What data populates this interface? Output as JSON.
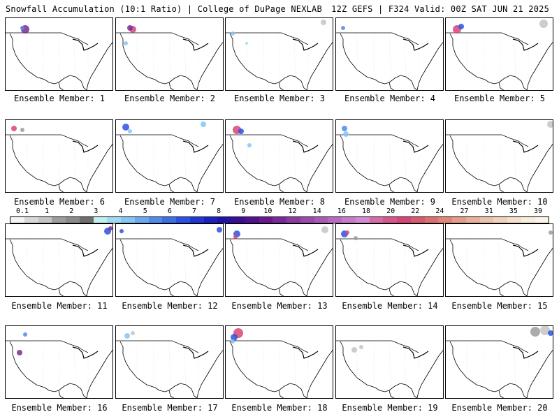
{
  "header": {
    "left": "Snowfall Accumulation (10:1 Ratio) | College of DuPage NEXLAB",
    "right": "12Z GEFS | F324 Valid: 00Z SAT JUN 21 2025"
  },
  "colorbar": {
    "labels": [
      "0.1",
      "1",
      "2",
      "3",
      "4",
      "5",
      "6",
      "7",
      "8",
      "9",
      "10",
      "12",
      "14",
      "16",
      "18",
      "20",
      "22",
      "24",
      "27",
      "31",
      "35",
      "39"
    ],
    "colors": [
      "#f4f4f4",
      "#d8d8d8",
      "#c4c4c4",
      "#9c9c9c",
      "#8a8a8a",
      "#6e6e6e",
      "#bfeeee",
      "#9fd9f3",
      "#85c5f4",
      "#6aa9f0",
      "#4e8ceb",
      "#3a6fe6",
      "#2a52e0",
      "#1f36d8",
      "#1a22c0",
      "#2412a8",
      "#3a0e96",
      "#52108e",
      "#6a1890",
      "#7a2a98",
      "#8a3aa2",
      "#9a4aac",
      "#a85ab6",
      "#b86ac0",
      "#c67ac8",
      "#d48ad0",
      "#d66aa8",
      "#d8548e",
      "#d84478",
      "#d85a6e",
      "#dc7070",
      "#e08878",
      "#e49c88",
      "#e8b098",
      "#ecc2aa",
      "#f0d2bc",
      "#f4e0cc",
      "#f8ecdc",
      "#fcf4ea"
    ]
  },
  "members": [
    {
      "label": "Ensemble Member: 1",
      "snow": [
        {
          "x": 28,
          "y": 16,
          "r": 6,
          "c": "#7a2a98"
        },
        {
          "x": 24,
          "y": 14,
          "r": 3,
          "c": "#4e8ceb"
        }
      ]
    },
    {
      "label": "Ensemble Member: 2",
      "snow": [
        {
          "x": 24,
          "y": 16,
          "r": 5,
          "c": "#d84478"
        },
        {
          "x": 20,
          "y": 14,
          "r": 4,
          "c": "#7a2a98"
        },
        {
          "x": 14,
          "y": 36,
          "r": 3,
          "c": "#85c5f4"
        }
      ]
    },
    {
      "label": "Ensemble Member: 3",
      "snow": [
        {
          "x": 10,
          "y": 22,
          "r": 3,
          "c": "#85c5f4"
        },
        {
          "x": 30,
          "y": 36,
          "r": 2,
          "c": "#9fd9f3"
        },
        {
          "x": 140,
          "y": 6,
          "r": 4,
          "c": "#c4c4c4"
        }
      ]
    },
    {
      "label": "Ensemble Member: 4",
      "snow": [
        {
          "x": 10,
          "y": 14,
          "r": 3,
          "c": "#4e8ceb"
        }
      ]
    },
    {
      "label": "Ensemble Member: 5",
      "snow": [
        {
          "x": 16,
          "y": 16,
          "r": 6,
          "c": "#d84478"
        },
        {
          "x": 22,
          "y": 12,
          "r": 4,
          "c": "#2a52e0"
        },
        {
          "x": 140,
          "y": 8,
          "r": 6,
          "c": "#c4c4c4"
        }
      ]
    },
    {
      "label": "Ensemble Member: 6",
      "snow": [
        {
          "x": 12,
          "y": 12,
          "r": 4,
          "c": "#d84478"
        },
        {
          "x": 24,
          "y": 14,
          "r": 3,
          "c": "#9c9c9c"
        }
      ]
    },
    {
      "label": "Ensemble Member: 7",
      "snow": [
        {
          "x": 14,
          "y": 10,
          "r": 5,
          "c": "#2a52e0"
        },
        {
          "x": 20,
          "y": 16,
          "r": 3,
          "c": "#85c5f4"
        },
        {
          "x": 125,
          "y": 6,
          "r": 4,
          "c": "#85c5f4"
        }
      ]
    },
    {
      "label": "Ensemble Member: 8",
      "snow": [
        {
          "x": 16,
          "y": 14,
          "r": 6,
          "c": "#d84478"
        },
        {
          "x": 22,
          "y": 16,
          "r": 4,
          "c": "#2a52e0"
        },
        {
          "x": 34,
          "y": 36,
          "r": 3,
          "c": "#85c5f4"
        }
      ]
    },
    {
      "label": "Ensemble Member: 9",
      "snow": [
        {
          "x": 12,
          "y": 12,
          "r": 4,
          "c": "#4e8ceb"
        },
        {
          "x": 14,
          "y": 20,
          "r": 4,
          "c": "#85c5f4"
        }
      ]
    },
    {
      "label": "Ensemble Member: 10",
      "snow": [
        {
          "x": 150,
          "y": 6,
          "r": 5,
          "c": "#c4c4c4"
        }
      ]
    },
    {
      "label": "Ensemble Member: 11",
      "snow": [
        {
          "x": 146,
          "y": 10,
          "r": 5,
          "c": "#2a52e0"
        },
        {
          "x": 150,
          "y": 6,
          "r": 3,
          "c": "#7a2a98"
        }
      ]
    },
    {
      "label": "Ensemble Member: 12",
      "snow": [
        {
          "x": 8,
          "y": 10,
          "r": 3,
          "c": "#2a52e0"
        },
        {
          "x": 148,
          "y": 8,
          "r": 4,
          "c": "#2a52e0"
        }
      ]
    },
    {
      "label": "Ensemble Member: 13",
      "snow": [
        {
          "x": 16,
          "y": 14,
          "r": 5,
          "c": "#2a52e0"
        },
        {
          "x": 14,
          "y": 18,
          "r": 3,
          "c": "#d84478"
        },
        {
          "x": 142,
          "y": 8,
          "r": 5,
          "c": "#c4c4c4"
        }
      ]
    },
    {
      "label": "Ensemble Member: 14",
      "snow": [
        {
          "x": 12,
          "y": 14,
          "r": 5,
          "c": "#2a52e0"
        },
        {
          "x": 16,
          "y": 12,
          "r": 3,
          "c": "#d84478"
        },
        {
          "x": 28,
          "y": 20,
          "r": 3,
          "c": "#9c9c9c"
        }
      ]
    },
    {
      "label": "Ensemble Member: 15",
      "snow": [
        {
          "x": 150,
          "y": 12,
          "r": 3,
          "c": "#9c9c9c"
        }
      ]
    },
    {
      "label": "Ensemble Member: 16",
      "snow": [
        {
          "x": 28,
          "y": 12,
          "r": 3,
          "c": "#4e8ceb"
        },
        {
          "x": 20,
          "y": 38,
          "r": 4,
          "c": "#7a2a98"
        }
      ]
    },
    {
      "label": "Ensemble Member: 17",
      "snow": [
        {
          "x": 16,
          "y": 14,
          "r": 4,
          "c": "#85c5f4"
        },
        {
          "x": 24,
          "y": 10,
          "r": 3,
          "c": "#c4c4c4"
        }
      ]
    },
    {
      "label": "Ensemble Member: 18",
      "snow": [
        {
          "x": 18,
          "y": 10,
          "r": 7,
          "c": "#d84478"
        },
        {
          "x": 12,
          "y": 16,
          "r": 5,
          "c": "#2a52e0"
        },
        {
          "x": 10,
          "y": 22,
          "r": 3,
          "c": "#85c5f4"
        }
      ]
    },
    {
      "label": "Ensemble Member: 19",
      "snow": [
        {
          "x": 26,
          "y": 34,
          "r": 4,
          "c": "#c4c4c4"
        },
        {
          "x": 36,
          "y": 30,
          "r": 3,
          "c": "#c4c4c4"
        }
      ]
    },
    {
      "label": "Ensemble Member: 20",
      "snow": [
        {
          "x": 128,
          "y": 8,
          "r": 7,
          "c": "#9c9c9c"
        },
        {
          "x": 142,
          "y": 6,
          "r": 7,
          "c": "#c4c4c4"
        },
        {
          "x": 150,
          "y": 10,
          "r": 4,
          "c": "#2a52e0"
        }
      ]
    }
  ]
}
